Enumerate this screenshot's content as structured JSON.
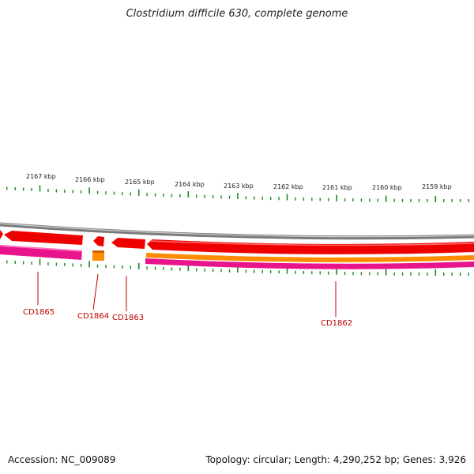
{
  "title": "Clostridium difficile 630, complete genome",
  "footer": {
    "accession": "Accession: NC_009089",
    "summary": "Topology: circular; Length: 4,290,252 bp; Genes: 3,926"
  },
  "scale_labels": [
    "2167 kbp",
    "2166 kbp",
    "2165 kbp",
    "2164 kbp",
    "2163 kbp",
    "2162 kbp",
    "2161 kbp",
    "2160 kbp",
    "2159 kbp"
  ],
  "genes": [
    {
      "name": "CD1865"
    },
    {
      "name": "CD1864"
    },
    {
      "name": "CD1863"
    },
    {
      "name": "CD1862"
    }
  ],
  "colors": {
    "backbone": "#8a8a8a",
    "cds": "#ee0000",
    "gene": "#ff8c00",
    "rna": "#e8148c",
    "ticks": "#1a8a1a",
    "label": "#c00000"
  }
}
